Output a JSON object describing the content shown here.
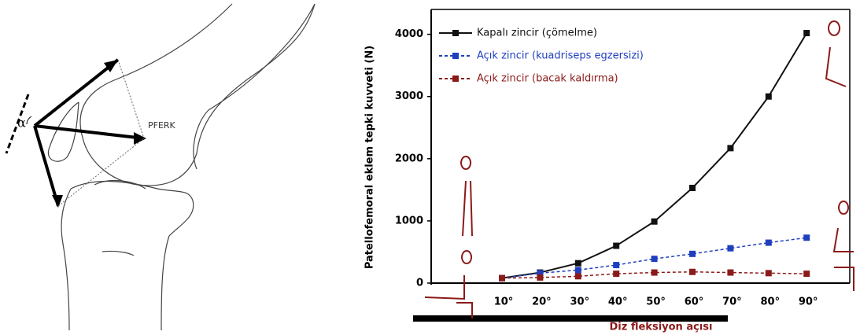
{
  "diagram_labels": {
    "angle": "α",
    "force": "PFERK"
  },
  "chart_data": {
    "type": "line",
    "y_label": "Patellofemoral eklem tepki kuvveti (N)",
    "x_label": "Diz fleksiyon açısı",
    "categories": [
      "10°",
      "20°",
      "30°",
      "40°",
      "50°",
      "60°",
      "70°",
      "80°",
      "90°"
    ],
    "series": [
      {
        "name": "Kapalı zincir (çömelme)",
        "color": "#111111",
        "dashed": false,
        "values": [
          80,
          170,
          320,
          600,
          990,
          1530,
          2170,
          3000,
          4020
        ]
      },
      {
        "name": "Açık zincir (kuadriseps egzersizi)",
        "color": "#1f3fbf",
        "dashed": true,
        "values": [
          80,
          160,
          210,
          290,
          390,
          470,
          560,
          650,
          730
        ]
      },
      {
        "name": "Açık zincir (bacak kaldırma)",
        "color": "#8b1a1a",
        "dashed": true,
        "values": [
          80,
          90,
          110,
          150,
          170,
          180,
          170,
          160,
          150
        ]
      }
    ],
    "ylim": [
      0,
      4400
    ],
    "yticks": [
      0,
      1000,
      2000,
      3000,
      4000
    ],
    "legend": "upper left"
  }
}
